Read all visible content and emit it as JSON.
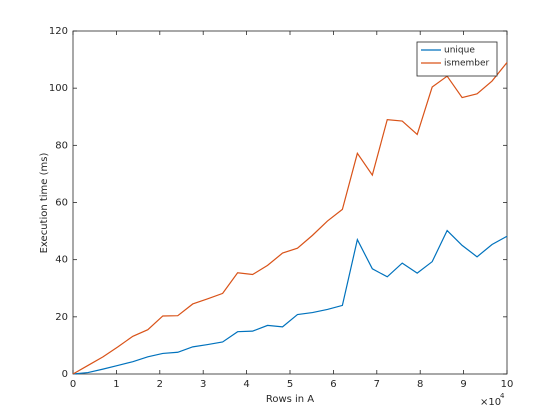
{
  "chart_data": {
    "type": "line",
    "xlabel": "Rows in A",
    "ylabel": "Execution time (ms)",
    "x_multiplier": "×10",
    "x_multiplier_exponent": "4",
    "x": [
      0,
      0.345,
      0.69,
      1.034,
      1.379,
      1.724,
      2.069,
      2.414,
      2.759,
      3.103,
      3.448,
      3.793,
      4.138,
      4.483,
      4.828,
      5.172,
      5.517,
      5.862,
      6.207,
      6.552,
      6.897,
      7.241,
      7.586,
      7.931,
      8.276,
      8.621,
      8.966,
      9.31,
      9.655,
      10
    ],
    "series": [
      {
        "name": "unique",
        "color": "#0072bd",
        "values": [
          0,
          0.5,
          1.7,
          3,
          4.3,
          6,
          7.2,
          7.6,
          9.5,
          10.3,
          11.2,
          14.8,
          15,
          17,
          16.5,
          20.8,
          21.5,
          22.6,
          24,
          47,
          36.8,
          34,
          38.8,
          35.3,
          39.3,
          50.2,
          45,
          41,
          45.3,
          48.2
        ]
      },
      {
        "name": "ismember",
        "color": "#d95319",
        "values": [
          0,
          3,
          6,
          9.5,
          13.2,
          15.5,
          20.3,
          20.4,
          24.5,
          26.3,
          28.2,
          35.4,
          34.8,
          38,
          42.3,
          44,
          48.5,
          53.5,
          57.6,
          77.2,
          69.6,
          89,
          88.5,
          83.8,
          100.4,
          104.2,
          96.7,
          98,
          102.5,
          109
        ]
      }
    ],
    "xlim": [
      0,
      10
    ],
    "xticks": [
      0,
      1,
      2,
      3,
      4,
      5,
      6,
      7,
      8,
      9,
      10
    ],
    "ylim": [
      0,
      120
    ],
    "yticks": [
      0,
      20,
      40,
      60,
      80,
      100,
      120
    ],
    "grid": false,
    "legend": "top-right"
  }
}
